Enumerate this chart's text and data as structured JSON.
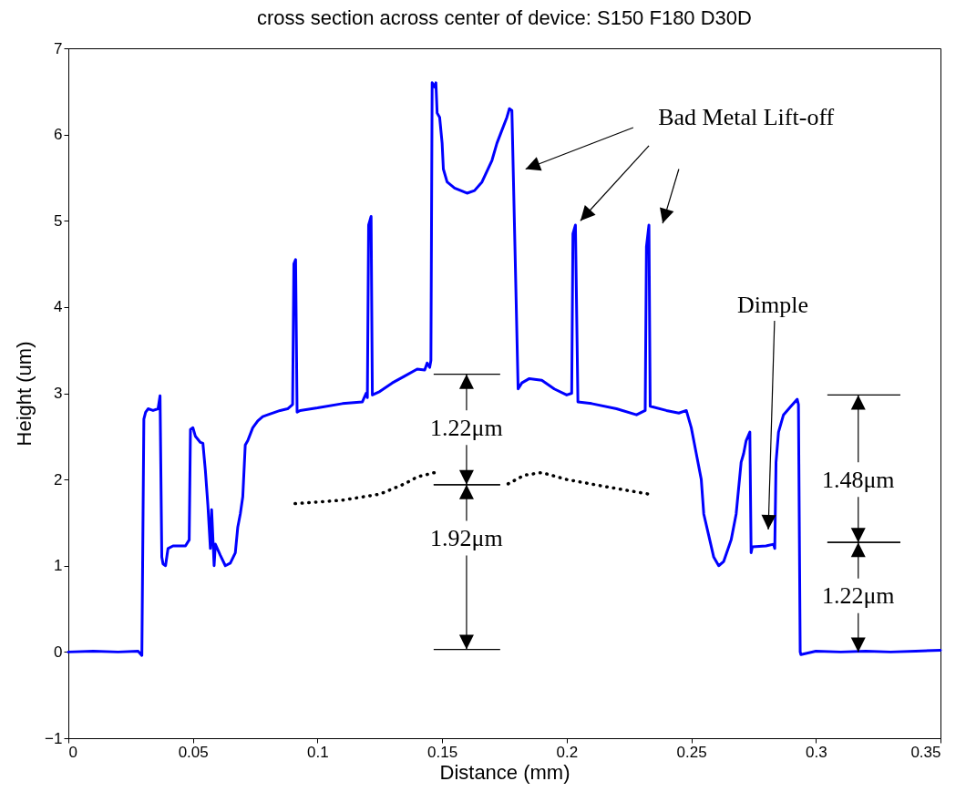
{
  "chart_data": {
    "type": "line",
    "title": "cross section across center of device: S150 F180 D30D",
    "xlabel": "Distance (mm)",
    "ylabel": "Height (um)",
    "xlim": [
      0,
      0.35
    ],
    "xticks": [
      0,
      0.05,
      0.1,
      0.15,
      0.2,
      0.25,
      0.3,
      0.35
    ],
    "ylim": [
      -1,
      7
    ],
    "yticks": [
      -1,
      0,
      1,
      2,
      3,
      4,
      5,
      6,
      7
    ],
    "grid": false,
    "annotations": [
      "Bad Metal Lift-off",
      "Dimple",
      "1.22μm",
      "1.92μm",
      "1.48μm",
      {
        "text": "1.22μm",
        "x": 0.317,
        "y": 0
      }
    ],
    "series": [
      {
        "color": "#0000ff",
        "line_style": "solid",
        "x": [
          0,
          0.01,
          0.02,
          0.028,
          0.0295,
          0.0303,
          0.031,
          0.032,
          0.034,
          0.036,
          0.0368,
          0.0375,
          0.038,
          0.039,
          0.04,
          0.042,
          0.047,
          0.0485,
          0.049,
          0.05,
          0.051,
          0.053,
          0.054,
          0.055,
          0.056,
          0.057,
          0.0575,
          0.0585,
          0.059,
          0.061,
          0.063,
          0.065,
          0.067,
          0.068,
          0.069,
          0.07,
          0.071,
          0.072,
          0.074,
          0.076,
          0.078,
          0.08,
          0.085,
          0.088,
          0.09,
          0.0905,
          0.0912,
          0.0918,
          0.093,
          0.1,
          0.11,
          0.118,
          0.1195,
          0.12,
          0.1205,
          0.1215,
          0.122,
          0.125,
          0.13,
          0.135,
          0.14,
          0.143,
          0.144,
          0.145,
          0.1455,
          0.146,
          0.147,
          0.1475,
          0.148,
          0.149,
          0.15,
          0.1505,
          0.152,
          0.155,
          0.16,
          0.163,
          0.166,
          0.17,
          0.172,
          0.174,
          0.176,
          0.177,
          0.178,
          0.1805,
          0.182,
          0.185,
          0.19,
          0.195,
          0.2,
          0.202,
          0.2025,
          0.2035,
          0.2045,
          0.21,
          0.22,
          0.228,
          0.2315,
          0.232,
          0.233,
          0.2335,
          0.24,
          0.245,
          0.248,
          0.25,
          0.252,
          0.254,
          0.255,
          0.257,
          0.259,
          0.261,
          0.263,
          0.266,
          0.268,
          0.27,
          0.271,
          0.272,
          0.2735,
          0.274,
          0.2745,
          0.28,
          0.283,
          0.2835,
          0.284,
          0.285,
          0.287,
          0.29,
          0.2925,
          0.293,
          0.2937,
          0.294,
          0.3,
          0.31,
          0.32,
          0.33,
          0.34,
          0.35
        ],
        "values": [
          0,
          0.01,
          0,
          0.01,
          -0.04,
          2.7,
          2.78,
          2.82,
          2.8,
          2.82,
          2.97,
          1.1,
          1.02,
          1.0,
          1.2,
          1.23,
          1.23,
          1.3,
          2.58,
          2.6,
          2.5,
          2.43,
          2.42,
          2.1,
          1.7,
          1.2,
          1.65,
          1.0,
          1.25,
          1.12,
          1.0,
          1.03,
          1.15,
          1.45,
          1.6,
          1.8,
          2.4,
          2.45,
          2.6,
          2.68,
          2.73,
          2.75,
          2.8,
          2.82,
          2.87,
          4.5,
          4.55,
          2.78,
          2.8,
          2.83,
          2.88,
          2.9,
          3.0,
          2.95,
          4.95,
          5.05,
          2.98,
          3.02,
          3.12,
          3.2,
          3.28,
          3.27,
          3.35,
          3.3,
          3.38,
          6.6,
          6.55,
          6.6,
          6.25,
          6.2,
          5.9,
          5.6,
          5.45,
          5.38,
          5.32,
          5.35,
          5.45,
          5.7,
          5.9,
          6.05,
          6.2,
          6.3,
          6.28,
          3.05,
          3.12,
          3.17,
          3.15,
          3.05,
          2.98,
          3.0,
          4.85,
          4.95,
          2.9,
          2.88,
          2.82,
          2.75,
          2.8,
          4.7,
          4.95,
          2.85,
          2.8,
          2.77,
          2.8,
          2.6,
          2.3,
          2.0,
          1.6,
          1.35,
          1.1,
          1.0,
          1.05,
          1.3,
          1.6,
          2.2,
          2.3,
          2.45,
          2.55,
          1.15,
          1.22,
          1.23,
          1.25,
          1.2,
          2.2,
          2.55,
          2.75,
          2.85,
          2.93,
          2.87,
          0,
          -0.03,
          0.01,
          0,
          0.01,
          0,
          0.01,
          0.02
        ]
      },
      {
        "color": "#000000",
        "line_style": "dotted",
        "x": [
          0.091,
          0.11,
          0.125,
          0.135,
          0.14,
          0.147,
          0.16,
          0.1765,
          0.183,
          0.19,
          0.2,
          0.215,
          0.233
        ],
        "values": [
          1.72,
          1.76,
          1.83,
          1.95,
          2.03,
          2.08,
          null,
          1.95,
          2.05,
          2.08,
          2.0,
          1.92,
          1.83
        ]
      }
    ]
  }
}
